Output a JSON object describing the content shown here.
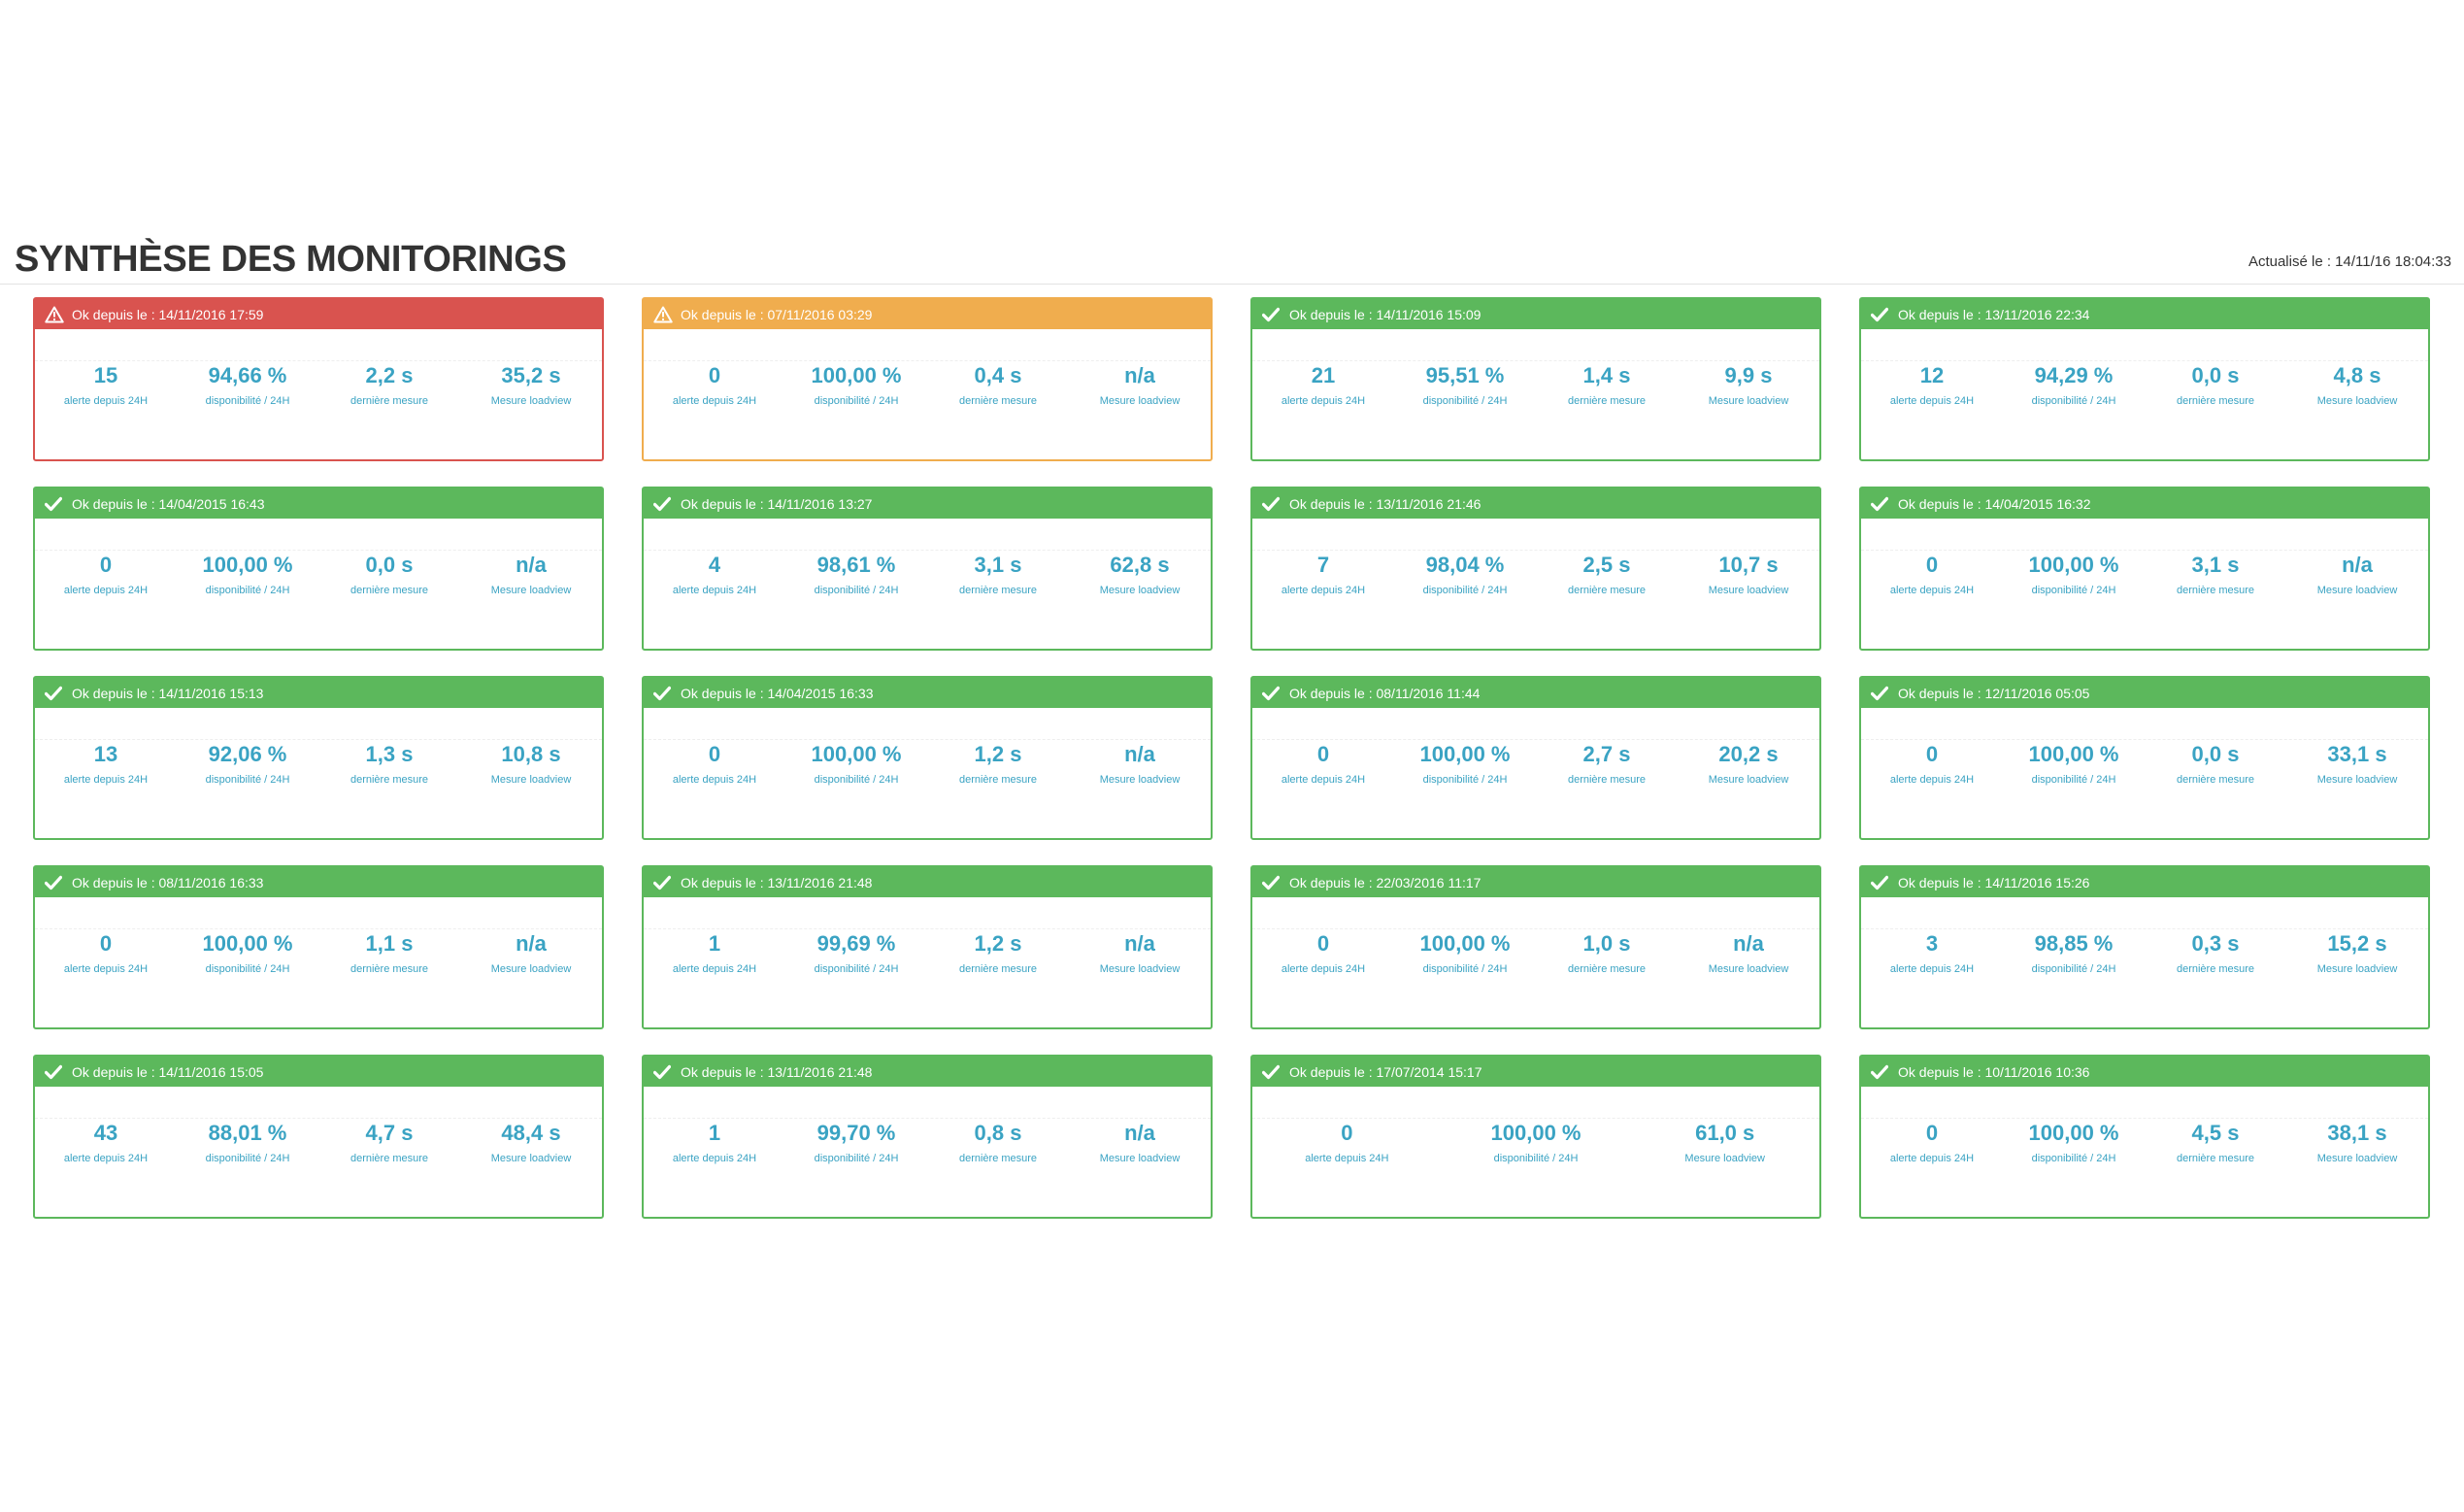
{
  "page": {
    "title": "SYNTHÈSE DES MONITORINGS",
    "updated": "Actualisé le : 14/11/16 18:04:33"
  },
  "colors": {
    "ok": "#5cb85c",
    "danger": "#d9534f",
    "warning": "#f0ad4e",
    "metric_text": "#3aa3c3"
  },
  "labels": {
    "alerts": "alerte depuis 24H",
    "availability": "disponibilité / 24H",
    "last": "dernière mesure",
    "loadview": "Mesure loadview"
  },
  "cards": [
    {
      "status": "danger",
      "icon": "warning-triangle-icon",
      "header": "Ok depuis le : 14/11/2016 17:59",
      "alerts": "15",
      "availability": "94,66 %",
      "last": "2,2 s",
      "loadview": "35,2 s"
    },
    {
      "status": "warning",
      "icon": "warning-triangle-icon",
      "header": "Ok depuis le : 07/11/2016 03:29",
      "alerts": "0",
      "availability": "100,00 %",
      "last": "0,4 s",
      "loadview": "n/a"
    },
    {
      "status": "ok",
      "icon": "checkmark-icon",
      "header": "Ok depuis le : 14/11/2016 15:09",
      "alerts": "21",
      "availability": "95,51 %",
      "last": "1,4 s",
      "loadview": "9,9 s"
    },
    {
      "status": "ok",
      "icon": "checkmark-icon",
      "header": "Ok depuis le : 13/11/2016 22:34",
      "alerts": "12",
      "availability": "94,29 %",
      "last": "0,0 s",
      "loadview": "4,8 s"
    },
    {
      "status": "ok",
      "icon": "checkmark-icon",
      "header": "Ok depuis le : 14/04/2015 16:43",
      "alerts": "0",
      "availability": "100,00 %",
      "last": "0,0 s",
      "loadview": "n/a"
    },
    {
      "status": "ok",
      "icon": "checkmark-icon",
      "header": "Ok depuis le : 14/11/2016 13:27",
      "alerts": "4",
      "availability": "98,61 %",
      "last": "3,1 s",
      "loadview": "62,8 s"
    },
    {
      "status": "ok",
      "icon": "checkmark-icon",
      "header": "Ok depuis le : 13/11/2016 21:46",
      "alerts": "7",
      "availability": "98,04 %",
      "last": "2,5 s",
      "loadview": "10,7 s"
    },
    {
      "status": "ok",
      "icon": "checkmark-icon",
      "header": "Ok depuis le : 14/04/2015 16:32",
      "alerts": "0",
      "availability": "100,00 %",
      "last": "3,1 s",
      "loadview": "n/a"
    },
    {
      "status": "ok",
      "icon": "checkmark-icon",
      "header": "Ok depuis le : 14/11/2016 15:13",
      "alerts": "13",
      "availability": "92,06 %",
      "last": "1,3 s",
      "loadview": "10,8 s"
    },
    {
      "status": "ok",
      "icon": "checkmark-icon",
      "header": "Ok depuis le : 14/04/2015 16:33",
      "alerts": "0",
      "availability": "100,00 %",
      "last": "1,2 s",
      "loadview": "n/a"
    },
    {
      "status": "ok",
      "icon": "checkmark-icon",
      "header": "Ok depuis le : 08/11/2016 11:44",
      "alerts": "0",
      "availability": "100,00 %",
      "last": "2,7 s",
      "loadview": "20,2 s"
    },
    {
      "status": "ok",
      "icon": "checkmark-icon",
      "header": "Ok depuis le : 12/11/2016 05:05",
      "alerts": "0",
      "availability": "100,00 %",
      "last": "0,0 s",
      "loadview": "33,1 s"
    },
    {
      "status": "ok",
      "icon": "checkmark-icon",
      "header": "Ok depuis le : 08/11/2016 16:33",
      "alerts": "0",
      "availability": "100,00 %",
      "last": "1,1 s",
      "loadview": "n/a"
    },
    {
      "status": "ok",
      "icon": "checkmark-icon",
      "header": "Ok depuis le : 13/11/2016 21:48",
      "alerts": "1",
      "availability": "99,69 %",
      "last": "1,2 s",
      "loadview": "n/a"
    },
    {
      "status": "ok",
      "icon": "checkmark-icon",
      "header": "Ok depuis le : 22/03/2016 11:17",
      "alerts": "0",
      "availability": "100,00 %",
      "last": "1,0 s",
      "loadview": "n/a"
    },
    {
      "status": "ok",
      "icon": "checkmark-icon",
      "header": "Ok depuis le : 14/11/2016 15:26",
      "alerts": "3",
      "availability": "98,85 %",
      "last": "0,3 s",
      "loadview": "15,2 s"
    },
    {
      "status": "ok",
      "icon": "checkmark-icon",
      "header": "Ok depuis le : 14/11/2016 15:05",
      "alerts": "43",
      "availability": "88,01 %",
      "last": "4,7 s",
      "loadview": "48,4 s"
    },
    {
      "status": "ok",
      "icon": "checkmark-icon",
      "header": "Ok depuis le : 13/11/2016 21:48",
      "alerts": "1",
      "availability": "99,70 %",
      "last": "0,8 s",
      "loadview": "n/a"
    },
    {
      "status": "ok",
      "icon": "checkmark-icon",
      "header": "Ok depuis le : 17/07/2014 15:17",
      "alerts": "0",
      "availability": "100,00 %",
      "loadview": "61,0 s"
    },
    {
      "status": "ok",
      "icon": "checkmark-icon",
      "header": "Ok depuis le : 10/11/2016 10:36",
      "alerts": "0",
      "availability": "100,00 %",
      "last": "4,5 s",
      "loadview": "38,1 s"
    }
  ]
}
